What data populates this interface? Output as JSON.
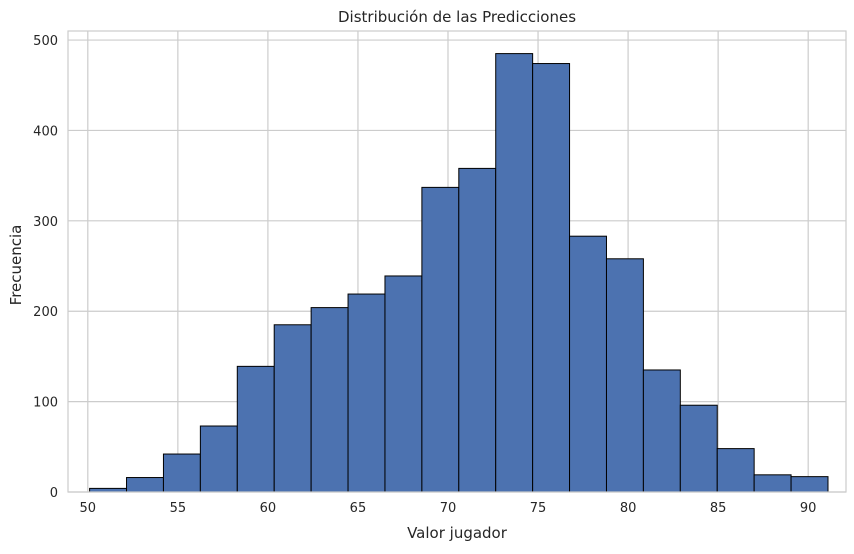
{
  "chart_data": {
    "type": "bar",
    "title": "Distribución de las Predicciones",
    "xlabel": "Valor jugador",
    "ylabel": "Frecuencia",
    "xlim": [
      48.9,
      92.1
    ],
    "ylim": [
      0,
      510
    ],
    "x_ticks": [
      50,
      55,
      60,
      65,
      70,
      75,
      80,
      85,
      90
    ],
    "y_ticks": [
      0,
      100,
      200,
      300,
      400,
      500
    ],
    "grid": true,
    "bar_color": "#4c72b0",
    "edge_color": "#000000",
    "bins": [
      {
        "start": 50.1,
        "end": 52.15,
        "value": 4
      },
      {
        "start": 52.15,
        "end": 54.2,
        "value": 16
      },
      {
        "start": 54.2,
        "end": 56.25,
        "value": 42
      },
      {
        "start": 56.25,
        "end": 58.3,
        "value": 73
      },
      {
        "start": 58.3,
        "end": 60.35,
        "value": 139
      },
      {
        "start": 60.35,
        "end": 62.4,
        "value": 185
      },
      {
        "start": 62.4,
        "end": 64.45,
        "value": 204
      },
      {
        "start": 64.45,
        "end": 66.5,
        "value": 219
      },
      {
        "start": 66.5,
        "end": 68.55,
        "value": 239
      },
      {
        "start": 68.55,
        "end": 70.6,
        "value": 337
      },
      {
        "start": 70.6,
        "end": 72.65,
        "value": 358
      },
      {
        "start": 72.65,
        "end": 74.7,
        "value": 485
      },
      {
        "start": 74.7,
        "end": 76.75,
        "value": 474
      },
      {
        "start": 76.75,
        "end": 78.8,
        "value": 283
      },
      {
        "start": 78.8,
        "end": 80.85,
        "value": 258
      },
      {
        "start": 80.85,
        "end": 82.9,
        "value": 135
      },
      {
        "start": 82.9,
        "end": 84.95,
        "value": 96
      },
      {
        "start": 84.95,
        "end": 87.0,
        "value": 48
      },
      {
        "start": 87.0,
        "end": 89.05,
        "value": 19
      },
      {
        "start": 89.05,
        "end": 91.1,
        "value": 17
      }
    ]
  }
}
